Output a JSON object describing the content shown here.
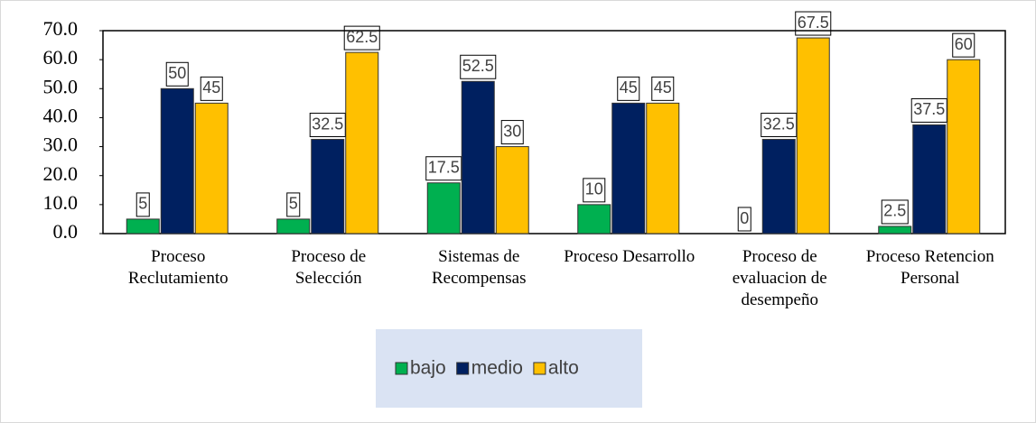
{
  "chart_data": {
    "type": "bar",
    "categories": [
      "Proceso Reclutamiento",
      "Proceso de Selección",
      "Sistemas de Recompensas",
      "Proceso Desarrollo",
      "Proceso de evaluacion de desempeño",
      "Proceso Retencion Personal"
    ],
    "series": [
      {
        "name": "bajo",
        "color": "#00b050",
        "values": [
          5,
          5,
          17.5,
          10,
          0,
          2.5
        ]
      },
      {
        "name": "medio",
        "color": "#002060",
        "values": [
          50,
          32.5,
          52.5,
          45,
          32.5,
          37.5
        ]
      },
      {
        "name": "alto",
        "color": "#ffc000",
        "values": [
          45,
          62.5,
          30,
          45,
          67.5,
          60
        ]
      }
    ],
    "ylim": [
      0,
      70
    ],
    "yticks": [
      {
        "value": 0,
        "label": "0.0"
      },
      {
        "value": 10,
        "label": "10.0"
      },
      {
        "value": 20,
        "label": "20.0"
      },
      {
        "value": 30,
        "label": "30.0"
      },
      {
        "value": 40,
        "label": "40.0"
      },
      {
        "value": 50,
        "label": "50.0"
      },
      {
        "value": 60,
        "label": "60.0"
      },
      {
        "value": 70,
        "label": "70.0"
      }
    ],
    "legend": "bottom"
  }
}
